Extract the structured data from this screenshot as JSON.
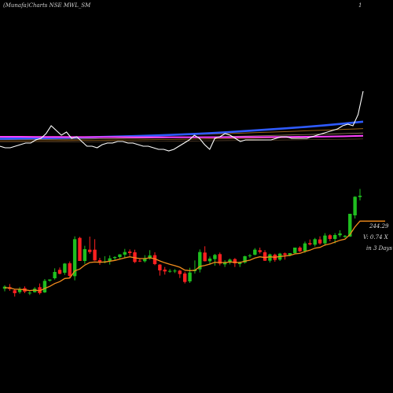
{
  "header": {
    "left_text": "(Munafa)Charts NSE MWL_SM",
    "right_text": "1"
  },
  "labels": {
    "price": "244.29",
    "volume": "V: 0.74  X",
    "period": "in 3 Days"
  },
  "colors": {
    "up": "#1fbf1f",
    "down": "#ff2020",
    "ema_short": "#f28c1c",
    "indicator_line": "#ffffff",
    "ma_blue": "#2f5bff",
    "ma_magenta": "#ff40ff",
    "ma_orange": "#c07a20",
    "ma_tan": "#c8a878"
  },
  "chart_data": {
    "type": "candlestick",
    "n_sessions": 72,
    "upper_indicator": {
      "series": [
        {
          "id": "ma_blue",
          "values": [
            0.7,
            0.9,
            1.1,
            1.3,
            1.5,
            1.8,
            2.1,
            2.4,
            2.8,
            3.2,
            3.7,
            4.3,
            5.0,
            5.8,
            6.6,
            7.4,
            8.3,
            9.3,
            10.4,
            11.6
          ]
        },
        {
          "id": "ma_magenta",
          "values": [
            2.0,
            2.0,
            1.9,
            1.9,
            1.8,
            1.8,
            1.8,
            1.7,
            1.7,
            1.7,
            1.7,
            1.7,
            1.7,
            1.8,
            1.8,
            1.9,
            2.0,
            2.1,
            2.3,
            2.6
          ]
        },
        {
          "id": "indicator_line",
          "values": [
            -4,
            -5,
            -5,
            -4,
            -3,
            -2,
            -2,
            0,
            1,
            4,
            9,
            6,
            3,
            5,
            1,
            2,
            -1,
            -4,
            -4,
            -5,
            -3,
            -2,
            -2,
            -1,
            -1,
            -2,
            -2,
            -3,
            -4,
            -4,
            -5,
            -6,
            -6,
            -7,
            -6,
            -4,
            -2,
            0,
            3,
            1,
            -3,
            -6,
            1,
            2,
            4,
            3,
            1,
            -1,
            0,
            0,
            0,
            0,
            0,
            0,
            1,
            2,
            2,
            1,
            1,
            1,
            1,
            2,
            3,
            4,
            5,
            6,
            7,
            9,
            10,
            9,
            16,
            31
          ]
        }
      ]
    },
    "candles": [
      [
        216.8,
        218.1,
        215.8,
        217.6
      ],
      [
        217.4,
        218.6,
        216.0,
        216.7
      ],
      [
        216.2,
        216.6,
        213.8,
        215.1
      ],
      [
        215.5,
        217.4,
        214.9,
        216.7
      ],
      [
        217.0,
        217.7,
        215.1,
        215.7
      ],
      [
        215.3,
        215.8,
        214.4,
        215.3
      ],
      [
        215.5,
        217.4,
        215.3,
        216.8
      ],
      [
        217.4,
        218.8,
        214.6,
        215.1
      ],
      [
        215.4,
        220.5,
        215.2,
        219.8
      ],
      [
        219.9,
        220.4,
        219.5,
        220.3
      ],
      [
        220.8,
        224.6,
        220.3,
        223.2
      ],
      [
        224.0,
        224.9,
        222.3,
        222.5
      ],
      [
        222.9,
        226.6,
        222.1,
        226.4
      ],
      [
        226.5,
        227.2,
        221.1,
        221.7
      ],
      [
        221.6,
        236.8,
        220.0,
        235.7
      ],
      [
        236.2,
        236.6,
        227.4,
        227.4
      ],
      [
        227.4,
        233.2,
        226.3,
        231.9
      ],
      [
        231.7,
        236.7,
        230.1,
        230.8
      ],
      [
        231.7,
        235.7,
        227.5,
        227.6
      ],
      [
        227.7,
        228.6,
        225.9,
        226.8
      ],
      [
        226.8,
        229.2,
        226.5,
        227.2
      ],
      [
        227.4,
        229.5,
        226.0,
        228.4
      ],
      [
        228.5,
        229.2,
        227.8,
        228.9
      ],
      [
        228.9,
        230.0,
        228.0,
        229.9
      ],
      [
        229.8,
        232.0,
        228.4,
        230.8
      ],
      [
        231.0,
        231.8,
        229.3,
        230.4
      ],
      [
        230.7,
        231.7,
        226.6,
        227.0
      ],
      [
        227.5,
        228.2,
        227.0,
        227.2
      ],
      [
        227.3,
        229.6,
        226.8,
        228.4
      ],
      [
        228.4,
        231.5,
        227.9,
        229.5
      ],
      [
        229.6,
        230.7,
        225.8,
        226.2
      ],
      [
        226.0,
        226.2,
        221.8,
        223.8
      ],
      [
        224.1,
        225.1,
        222.2,
        223.4
      ],
      [
        223.5,
        224.3,
        222.9,
        223.6
      ],
      [
        223.6,
        224.3,
        222.8,
        223.7
      ],
      [
        223.7,
        224.0,
        220.9,
        222.4
      ],
      [
        222.6,
        223.3,
        218.8,
        219.4
      ],
      [
        219.6,
        224.8,
        219.0,
        223.0
      ],
      [
        223.5,
        227.6,
        222.6,
        224.1
      ],
      [
        224.2,
        231.8,
        223.0,
        230.8
      ],
      [
        230.6,
        233.0,
        227.2,
        227.3
      ],
      [
        227.3,
        229.1,
        226.0,
        228.3
      ],
      [
        228.1,
        230.1,
        225.6,
        229.7
      ],
      [
        230.0,
        230.6,
        225.7,
        226.4
      ],
      [
        226.1,
        227.7,
        225.1,
        226.7
      ],
      [
        226.9,
        228.3,
        226.1,
        227.9
      ],
      [
        228.1,
        228.5,
        225.1,
        226.5
      ],
      [
        226.2,
        227.2,
        225.1,
        226.7
      ],
      [
        226.8,
        229.4,
        226.4,
        229.2
      ],
      [
        229.3,
        230.1,
        228.6,
        229.5
      ],
      [
        229.8,
        232.3,
        229.5,
        231.7
      ],
      [
        231.5,
        232.5,
        230.2,
        230.8
      ],
      [
        230.7,
        231.5,
        227.4,
        227.5
      ],
      [
        227.5,
        230.2,
        226.8,
        229.9
      ],
      [
        229.8,
        230.2,
        227.1,
        227.8
      ],
      [
        227.9,
        230.5,
        227.4,
        230.2
      ],
      [
        230.3,
        230.6,
        227.9,
        229.7
      ],
      [
        229.6,
        230.4,
        229.2,
        230.4
      ],
      [
        230.4,
        232.5,
        230.1,
        232.5
      ],
      [
        232.5,
        233.0,
        230.8,
        231.1
      ],
      [
        231.2,
        234.8,
        230.5,
        234.1
      ],
      [
        234.2,
        235.6,
        233.3,
        233.7
      ],
      [
        233.6,
        236.2,
        232.9,
        235.7
      ],
      [
        235.6,
        236.8,
        233.6,
        234.1
      ],
      [
        234.1,
        238.0,
        233.2,
        237.1
      ],
      [
        237.2,
        237.6,
        234.9,
        235.8
      ],
      [
        235.8,
        238.0,
        234.1,
        237.3
      ],
      [
        237.2,
        239.1,
        236.5,
        237.9
      ],
      [
        236.6,
        237.3,
        236.2,
        237.0
      ],
      [
        236.7,
        245.4,
        236.6,
        245.4
      ],
      [
        244.8,
        252.1,
        243.6,
        251.9
      ],
      [
        251.8,
        254.9,
        250.5,
        252.3
      ]
    ],
    "ema_short": [
      217.2,
      217.1,
      216.6,
      216.6,
      216.4,
      216.1,
      216.3,
      216.0,
      216.9,
      217.7,
      218.8,
      219.5,
      220.7,
      220.9,
      223.6,
      224.3,
      225.8,
      226.8,
      227.0,
      226.9,
      227.0,
      227.3,
      227.6,
      228.1,
      228.6,
      229.0,
      228.6,
      228.3,
      228.3,
      228.6,
      228.2,
      227.4,
      226.7,
      226.1,
      225.6,
      225.0,
      223.9,
      223.7,
      223.8,
      225.3,
      225.7,
      226.2,
      226.9,
      226.8,
      226.8,
      227.0,
      226.9,
      226.8,
      227.3,
      227.7,
      228.5,
      229.0,
      228.7,
      229.0,
      228.8,
      229.1,
      229.3,
      229.5,
      230.1,
      230.3,
      231.0,
      231.5,
      232.3,
      232.6,
      233.5,
      233.9,
      234.6,
      235.3,
      235.7,
      237.5,
      240.4,
      242.6
    ]
  }
}
